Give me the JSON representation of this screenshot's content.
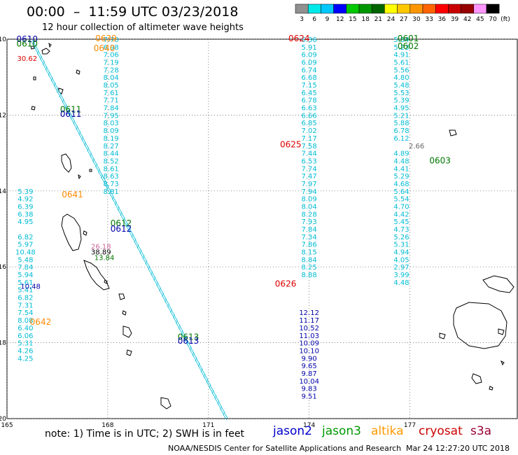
{
  "header": {
    "title": "00:00  –  11:59 UTC 03/23/2018",
    "subtitle": "12 hour collection of altimeter wave heights"
  },
  "colorbar": {
    "labels": [
      "3",
      "6",
      "9",
      "12",
      "15",
      "18",
      "21",
      "24",
      "27",
      "30",
      "33",
      "36",
      "39",
      "42",
      "45",
      "70"
    ],
    "unit": "(ft)",
    "colors": [
      "#909090",
      "#00e8e8",
      "#00c8ff",
      "#0000ff",
      "#00c800",
      "#009600",
      "#006400",
      "#ffff00",
      "#ffc800",
      "#ff9600",
      "#ff6400",
      "#ff0000",
      "#c80000",
      "#960000",
      "#ff96ff",
      "#000000"
    ]
  },
  "axes": {
    "lat_ticks": [
      "-10",
      "-12",
      "-14",
      "-16",
      "-18",
      "-20"
    ],
    "lon_ticks": [
      "165",
      "168",
      "171",
      "174",
      "177"
    ]
  },
  "footer": {
    "note": "note: 1) Time is in UTC; 2) SWH is in feet",
    "legend": [
      {
        "name": "jason2",
        "color": "#0000cc"
      },
      {
        "name": "jason3",
        "color": "#009900"
      },
      {
        "name": "altika",
        "color": "#ff9900"
      },
      {
        "name": "cryosat",
        "color": "#cc0000"
      },
      {
        "name": "s3a",
        "color": "#990033"
      }
    ],
    "credit": "NOAA/NESDIS Center for Satellite Applications and Research",
    "timestamp": "Mar 24 12:27:20 UTC 2018"
  },
  "tracks": {
    "colors": {
      "cyan": "#00bcd4",
      "blue": "#0000aa",
      "green": "#007700",
      "orange": "#ff8800",
      "red": "#dd0000",
      "gray": "#666666",
      "pink": "#cc6699",
      "black": "#000000"
    },
    "time_labels": [
      {
        "text": "0610",
        "lon": 165.6,
        "lat": -10.0,
        "c": "blue"
      },
      {
        "text": "0610",
        "lon": 165.6,
        "lat": -10.12,
        "c": "green"
      },
      {
        "text": "0639",
        "lon": 167.95,
        "lat": -9.98,
        "c": "orange"
      },
      {
        "text": "0640",
        "lon": 167.9,
        "lat": -10.24,
        "c": "orange"
      },
      {
        "text": "0624",
        "lon": 173.7,
        "lat": -9.98,
        "c": "red"
      },
      {
        "text": "0601",
        "lon": 176.95,
        "lat": -9.98,
        "c": "green"
      },
      {
        "text": "0602",
        "lon": 176.95,
        "lat": -10.18,
        "c": "green"
      },
      {
        "text": "0611",
        "lon": 166.9,
        "lat": -11.85,
        "c": "green"
      },
      {
        "text": "0611",
        "lon": 166.9,
        "lat": -11.97,
        "c": "blue"
      },
      {
        "text": "0625",
        "lon": 173.45,
        "lat": -12.78,
        "c": "red"
      },
      {
        "text": "0603",
        "lon": 177.9,
        "lat": -13.2,
        "c": "green"
      },
      {
        "text": "0641",
        "lon": 166.95,
        "lat": -14.1,
        "c": "orange"
      },
      {
        "text": "0612",
        "lon": 168.4,
        "lat": -14.85,
        "c": "green"
      },
      {
        "text": "0612",
        "lon": 168.4,
        "lat": -15.0,
        "c": "blue"
      },
      {
        "text": "0626",
        "lon": 173.3,
        "lat": -16.45,
        "c": "red"
      },
      {
        "text": "0642",
        "lon": 166.0,
        "lat": -17.45,
        "c": "orange"
      },
      {
        "text": "0613",
        "lon": 170.4,
        "lat": -17.85,
        "c": "green"
      },
      {
        "text": "0613",
        "lon": 170.4,
        "lat": -17.95,
        "c": "blue"
      }
    ],
    "singles": [
      {
        "text": "30.62",
        "lon": 165.6,
        "lat": -10.5,
        "c": "red"
      },
      {
        "text": "38.89",
        "lon": 167.8,
        "lat": -15.6,
        "c": "black"
      },
      {
        "text": "26.18",
        "lon": 167.8,
        "lat": -15.45,
        "c": "pink"
      },
      {
        "text": "13.84",
        "lon": 167.9,
        "lat": -15.75,
        "c": "green"
      },
      {
        "text": "10.48",
        "lon": 165.7,
        "lat": -16.5,
        "c": "blue"
      },
      {
        "text": "2.66",
        "lon": 177.2,
        "lat": -12.8,
        "c": "gray"
      }
    ],
    "columns": [
      {
        "c": "cyan",
        "lon": 168.1,
        "lat0": -10.0,
        "dlat": -0.2,
        "values": [
          "7.70",
          "6.98",
          "7.06",
          "7.19",
          "7.28",
          "8.04",
          "8.05",
          "7.61",
          "7.71",
          "7.84",
          "7.95",
          "8.03",
          "8.09",
          "8.19",
          "8.27",
          "8.44",
          "8.52",
          "8.61",
          "8.63",
          "8.73",
          "8.81"
        ]
      },
      {
        "c": "cyan",
        "lon": 174.0,
        "lat0": -10.0,
        "dlat": -0.2,
        "values": [
          "6.36",
          "5.91",
          "6.09",
          "6.09",
          "6.74",
          "6.68",
          "7.15",
          "6.45",
          "6.78",
          "6.63",
          "6.66",
          "6.85",
          "7.02",
          "7.17",
          "7.58",
          "7.44",
          "6.53",
          "7.74",
          "7.47",
          "7.97",
          "7.94",
          "8.09",
          "8.04",
          "8.28",
          "7.93",
          "7.84",
          "7.34",
          "7.86",
          "8.15",
          "8.84",
          "8.25",
          "8.88"
        ]
      },
      {
        "c": "blue",
        "lon": 174.0,
        "lat0": -16.4,
        "dlat": -0.2,
        "values": [
          "",
          "",
          "",
          "",
          "12.12",
          "11.17",
          "10.52",
          "11.03",
          "10.09",
          "10.10",
          "9.90",
          "9.65",
          "9.87",
          "10.04",
          "9.83",
          "9.51"
        ],
        "fix": true
      },
      {
        "c": "cyan",
        "lon": 176.75,
        "lat0": -10.0,
        "dlat": -0.2,
        "values": [
          "5.54",
          "5.23",
          "4.91",
          "5.61",
          "5.56",
          "4.80",
          "5.48",
          "5.53",
          "5.39",
          "4.95",
          "5.21",
          "5.88",
          "6.78",
          "6.12",
          "",
          "4.89",
          "4.48",
          "4.41",
          "5.29",
          "4.68",
          "5.64",
          "5.54",
          "4.70",
          "4.42",
          "5.45",
          "4.73",
          "5.26",
          "5.31",
          "4.94",
          "4.05",
          "2.97",
          "3.99",
          "4.48"
        ]
      },
      {
        "c": "cyan",
        "lon": 165.55,
        "lat0": -14.0,
        "dlat": -0.2,
        "values": [
          "5.39",
          "4.92",
          "6.39",
          "6.38",
          "4.95",
          "",
          "6.82",
          "5.97",
          "10.48",
          "5.48",
          "7.84",
          "5.94",
          "5.61",
          "5.41",
          "6.82",
          "7.31",
          "7.54",
          "8.08",
          "6.40",
          "6.06",
          "5.31",
          "4.26",
          "4.25"
        ]
      }
    ]
  }
}
